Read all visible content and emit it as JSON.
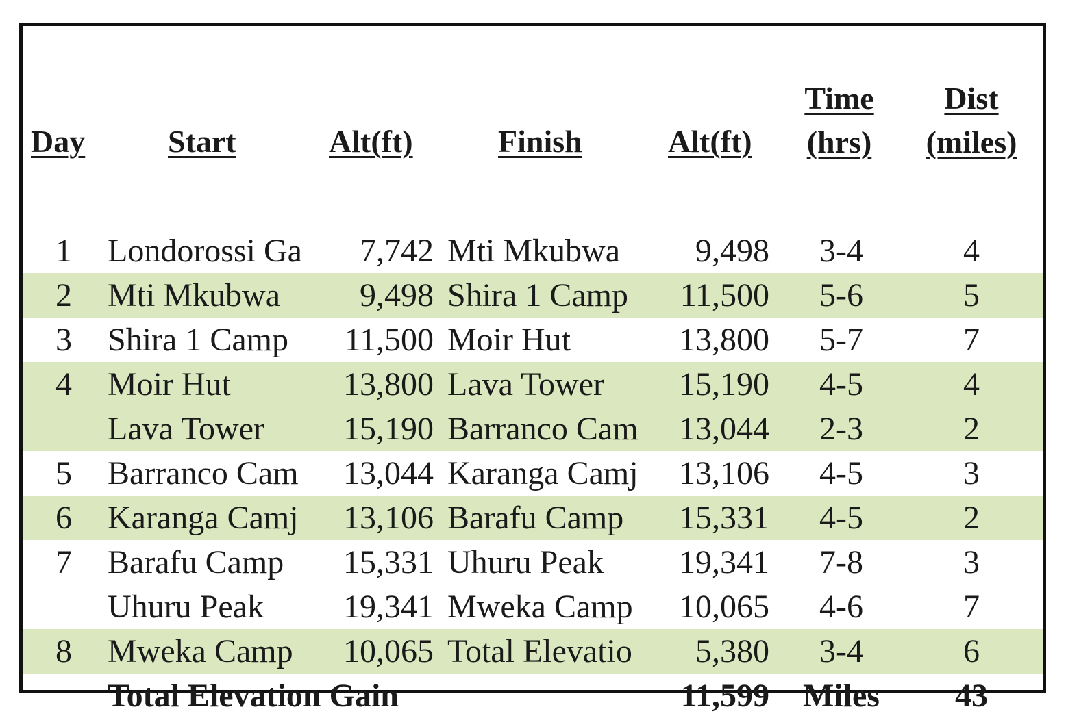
{
  "headers": {
    "day": "Day",
    "start": "Start",
    "start_alt": "Alt(ft)",
    "finish": "Finish",
    "finish_alt": "Alt(ft)",
    "time_line1": "Time",
    "time_line2": "(hrs)",
    "dist_line1": "Dist",
    "dist_line2": "(miles)"
  },
  "rows": [
    {
      "day": "1",
      "start": "Londorossi Ga",
      "start_alt": "7,742",
      "finish": "Mti Mkubwa",
      "finish_alt": "9,498",
      "time": "3-4",
      "dist": "4",
      "shaded": false
    },
    {
      "day": "2",
      "start": "Mti Mkubwa",
      "start_alt": "9,498",
      "finish": "Shira 1 Camp",
      "finish_alt": "11,500",
      "time": "5-6",
      "dist": "5",
      "shaded": true
    },
    {
      "day": "3",
      "start": "Shira 1 Camp",
      "start_alt": "11,500",
      "finish": "Moir Hut",
      "finish_alt": "13,800",
      "time": "5-7",
      "dist": "7",
      "shaded": false
    },
    {
      "day": "4",
      "start": "Moir Hut",
      "start_alt": "13,800",
      "finish": "Lava Tower",
      "finish_alt": "15,190",
      "time": "4-5",
      "dist": "4",
      "shaded": true
    },
    {
      "day": "",
      "start": "Lava Tower",
      "start_alt": "15,190",
      "finish": "Barranco Cam",
      "finish_alt": "13,044",
      "time": "2-3",
      "dist": "2",
      "shaded": true
    },
    {
      "day": "5",
      "start": "Barranco Cam",
      "start_alt": "13,044",
      "finish": "Karanga Camj",
      "finish_alt": "13,106",
      "time": "4-5",
      "dist": "3",
      "shaded": false
    },
    {
      "day": "6",
      "start": "Karanga Camj",
      "start_alt": "13,106",
      "finish": "Barafu Camp",
      "finish_alt": "15,331",
      "time": "4-5",
      "dist": "2",
      "shaded": true
    },
    {
      "day": "7",
      "start": "Barafu Camp",
      "start_alt": "15,331",
      "finish": "Uhuru Peak",
      "finish_alt": "19,341",
      "time": "7-8",
      "dist": "3",
      "shaded": false
    },
    {
      "day": "",
      "start": "Uhuru Peak",
      "start_alt": "19,341",
      "finish": "Mweka Camp",
      "finish_alt": "10,065",
      "time": "4-6",
      "dist": "7",
      "shaded": false
    },
    {
      "day": "8",
      "start": "Mweka Camp",
      "start_alt": "10,065",
      "finish": "Total Elevatio",
      "finish_alt": "5,380",
      "time": "3-4",
      "dist": "6",
      "shaded": true
    }
  ],
  "total": {
    "label": "Total Elevation Gain",
    "elevation": "11,599",
    "miles_label": "Miles",
    "miles": "43"
  },
  "colors": {
    "shade": "#dbe8bf",
    "border": "#111111"
  }
}
